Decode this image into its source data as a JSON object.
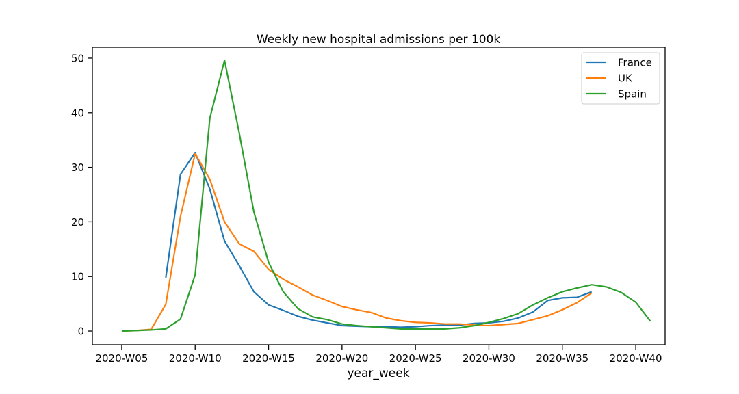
{
  "chart_data": {
    "type": "line",
    "title": "Weekly new hospital admissions per 100k",
    "xlabel": "year_week",
    "ylabel": "",
    "x_ticks": [
      "2020-W05",
      "2020-W10",
      "2020-W15",
      "2020-W20",
      "2020-W25",
      "2020-W30",
      "2020-W35",
      "2020-W40"
    ],
    "y_ticks": [
      0,
      10,
      20,
      30,
      40,
      50
    ],
    "xlim": [
      3.0,
      42.0
    ],
    "ylim": [
      -2.5,
      52.0
    ],
    "grid": false,
    "legend_position": "top-right",
    "series": [
      {
        "name": "France",
        "color": "#1f77b4",
        "x": [
          8,
          9,
          10,
          11,
          12,
          13,
          14,
          15,
          16,
          17,
          18,
          19,
          20,
          21,
          22,
          23,
          24,
          25,
          26,
          27,
          28,
          29,
          30,
          31,
          32,
          33,
          34,
          35,
          36,
          37
        ],
        "y": [
          9.8,
          28.7,
          32.7,
          26.0,
          16.5,
          12.0,
          7.2,
          4.8,
          3.8,
          2.7,
          2.0,
          1.5,
          1.0,
          0.9,
          0.8,
          0.8,
          0.7,
          0.8,
          1.0,
          1.1,
          1.1,
          1.4,
          1.5,
          1.8,
          2.4,
          3.5,
          5.6,
          6.1,
          6.2,
          7.2
        ]
      },
      {
        "name": "UK",
        "color": "#ff7f0e",
        "x": [
          5,
          6,
          7,
          8,
          9,
          10,
          11,
          12,
          13,
          14,
          15,
          16,
          17,
          18,
          19,
          20,
          21,
          22,
          23,
          24,
          25,
          26,
          27,
          28,
          29,
          30,
          31,
          32,
          33,
          34,
          35,
          36,
          37
        ],
        "y": [
          0.0,
          0.1,
          0.3,
          4.9,
          21.0,
          32.5,
          27.8,
          20.0,
          16.0,
          14.6,
          11.3,
          9.5,
          8.1,
          6.6,
          5.6,
          4.5,
          3.9,
          3.4,
          2.4,
          1.9,
          1.6,
          1.5,
          1.3,
          1.3,
          1.1,
          1.0,
          1.2,
          1.4,
          2.1,
          2.8,
          3.9,
          5.2,
          7.0
        ]
      },
      {
        "name": "Spain",
        "color": "#2ca02c",
        "x": [
          5,
          6,
          7,
          8,
          9,
          10,
          11,
          12,
          13,
          14,
          15,
          16,
          17,
          18,
          19,
          20,
          21,
          22,
          23,
          24,
          25,
          26,
          27,
          28,
          29,
          30,
          31,
          32,
          33,
          34,
          35,
          36,
          37,
          38,
          39,
          40,
          41
        ],
        "y": [
          0.0,
          0.1,
          0.2,
          0.4,
          2.2,
          10.3,
          39.0,
          49.6,
          36.3,
          21.8,
          12.6,
          7.2,
          4.1,
          2.6,
          2.1,
          1.3,
          1.0,
          0.8,
          0.6,
          0.4,
          0.4,
          0.4,
          0.4,
          0.6,
          1.0,
          1.6,
          2.3,
          3.2,
          4.8,
          6.1,
          7.2,
          7.9,
          8.5,
          8.1,
          7.1,
          5.3,
          1.8
        ]
      }
    ]
  }
}
